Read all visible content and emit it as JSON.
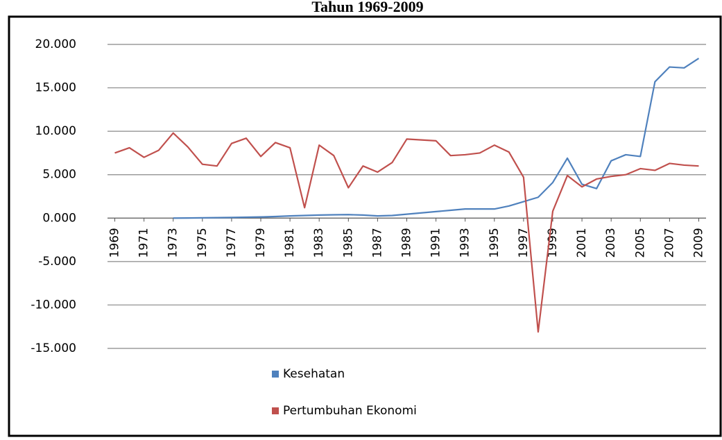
{
  "chart_data": {
    "type": "line",
    "title": "Tahun 1969-2009",
    "x": [
      1969,
      1970,
      1971,
      1972,
      1973,
      1974,
      1975,
      1976,
      1977,
      1978,
      1979,
      1980,
      1981,
      1982,
      1983,
      1984,
      1985,
      1986,
      1987,
      1988,
      1989,
      1990,
      1991,
      1992,
      1993,
      1994,
      1995,
      1996,
      1997,
      1998,
      1999,
      2000,
      2001,
      2002,
      2003,
      2004,
      2005,
      2006,
      2007,
      2008,
      2009
    ],
    "xlim": [
      1968.5,
      2009.5
    ],
    "xticks": [
      1969,
      1971,
      1973,
      1975,
      1977,
      1979,
      1981,
      1983,
      1985,
      1987,
      1989,
      1991,
      1993,
      1995,
      1997,
      1999,
      2001,
      2003,
      2005,
      2007,
      2009
    ],
    "ylim": [
      -15,
      20
    ],
    "yticks": [
      {
        "value": -15,
        "label": "-15.000"
      },
      {
        "value": -10,
        "label": "-10.000"
      },
      {
        "value": -5,
        "label": "-5.000"
      },
      {
        "value": 0,
        "label": "0.000"
      },
      {
        "value": 5,
        "label": "5.000"
      },
      {
        "value": 10,
        "label": "10.000"
      },
      {
        "value": 15,
        "label": "15.000"
      },
      {
        "value": 20,
        "label": "20.000"
      }
    ],
    "grid": true,
    "legend": "bottom",
    "series": [
      {
        "name": "Kesehatan",
        "color": "#4f81bd",
        "values": [
          null,
          null,
          null,
          null,
          0.0,
          0.01,
          0.03,
          0.05,
          0.07,
          0.1,
          0.13,
          0.18,
          0.25,
          0.3,
          0.35,
          0.38,
          0.4,
          0.35,
          0.25,
          0.3,
          0.45,
          0.6,
          0.75,
          0.9,
          1.05,
          1.05,
          1.05,
          1.4,
          1.9,
          2.4,
          4.1,
          6.9,
          3.9,
          3.4,
          6.6,
          7.3,
          7.1,
          15.7,
          17.4,
          17.3,
          18.4
        ]
      },
      {
        "name": "Pertumbuhan Ekonomi",
        "color": "#c0504d",
        "values": [
          7.5,
          8.1,
          7.0,
          7.8,
          9.8,
          8.2,
          6.2,
          6.0,
          8.6,
          9.2,
          7.1,
          8.7,
          8.1,
          1.2,
          8.4,
          7.2,
          3.5,
          6.0,
          5.3,
          6.4,
          9.1,
          9.0,
          8.9,
          7.2,
          7.3,
          7.5,
          8.4,
          7.6,
          4.7,
          -13.1,
          0.8,
          4.9,
          3.6,
          4.5,
          4.8,
          5.0,
          5.7,
          5.5,
          6.3,
          6.1,
          6.0
        ]
      }
    ]
  }
}
